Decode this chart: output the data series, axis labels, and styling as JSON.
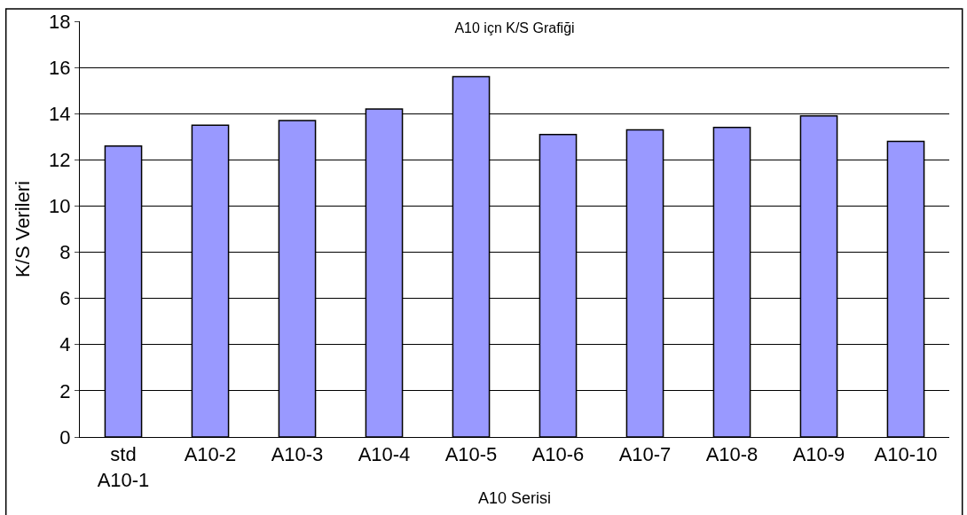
{
  "chart_data": {
    "type": "bar",
    "title": "A10 içn K/S Grafiği",
    "xlabel": "A10 Serisi",
    "ylabel": "K/S Verileri",
    "categories": [
      "std A10-1",
      "A10-2",
      "A10-3",
      "A10-4",
      "A10-5",
      "A10-6",
      "A10-7",
      "A10-8",
      "A10-9",
      "A10-10"
    ],
    "values": [
      12.6,
      13.5,
      13.7,
      14.2,
      15.6,
      13.1,
      13.3,
      13.4,
      13.9,
      12.8
    ],
    "color": "#9999ff",
    "ylim": [
      0,
      18
    ],
    "yticks": [
      0,
      2,
      4,
      6,
      8,
      10,
      12,
      14,
      16,
      18
    ],
    "grid": "y",
    "legend": false
  }
}
